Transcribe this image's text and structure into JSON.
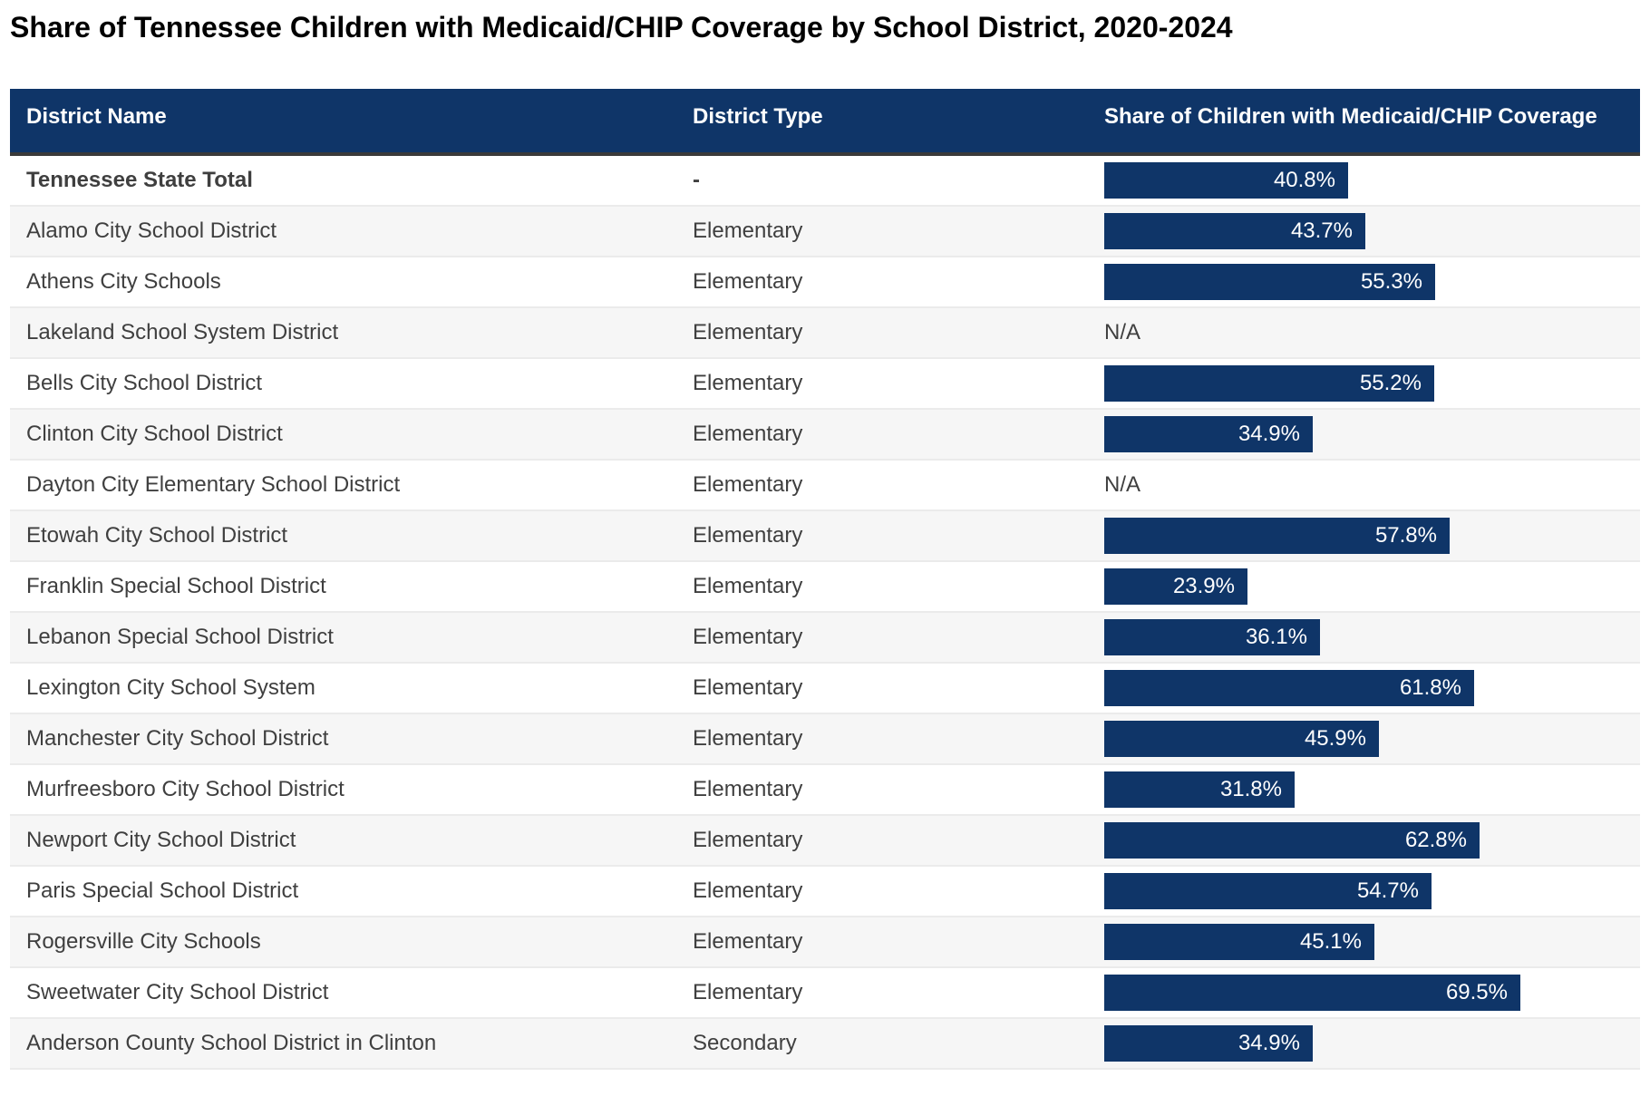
{
  "title": "Share of Tennessee Children with Medicaid/CHIP Coverage by School District, 2020-2024",
  "chart_data": {
    "type": "table",
    "title": "Share of Tennessee Children with Medicaid/CHIP Coverage by School District, 2020-2024",
    "columns": [
      "District Name",
      "District Type",
      "Share of Children with Medicaid/CHIP Coverage"
    ],
    "value_unit": "%",
    "na_text": "N/A",
    "max_value": 69.5,
    "legend_position": "none",
    "grid": "row-stripes",
    "colors": {
      "bar": "#0f3568",
      "header_bg": "#0f3568",
      "header_text": "#ffffff",
      "header_border": "#3a3a3a",
      "row_alt": "#f6f6f6",
      "row_border": "#ebebeb",
      "body_text": "#3f3f3f",
      "bar_label_text": "#ffffff"
    },
    "rows": [
      {
        "district_name": "Tennessee State Total",
        "district_type": "-",
        "share_pct": 40.8,
        "label": "40.8%",
        "emphasis": true
      },
      {
        "district_name": "Alamo City School District",
        "district_type": "Elementary",
        "share_pct": 43.7,
        "label": "43.7%",
        "emphasis": false
      },
      {
        "district_name": "Athens City Schools",
        "district_type": "Elementary",
        "share_pct": 55.3,
        "label": "55.3%",
        "emphasis": false
      },
      {
        "district_name": "Lakeland School System District",
        "district_type": "Elementary",
        "share_pct": null,
        "label": "N/A",
        "emphasis": false
      },
      {
        "district_name": "Bells City School District",
        "district_type": "Elementary",
        "share_pct": 55.2,
        "label": "55.2%",
        "emphasis": false
      },
      {
        "district_name": "Clinton City School District",
        "district_type": "Elementary",
        "share_pct": 34.9,
        "label": "34.9%",
        "emphasis": false
      },
      {
        "district_name": "Dayton City Elementary School District",
        "district_type": "Elementary",
        "share_pct": null,
        "label": "N/A",
        "emphasis": false
      },
      {
        "district_name": "Etowah City School District",
        "district_type": "Elementary",
        "share_pct": 57.8,
        "label": "57.8%",
        "emphasis": false
      },
      {
        "district_name": "Franklin Special School District",
        "district_type": "Elementary",
        "share_pct": 23.9,
        "label": "23.9%",
        "emphasis": false
      },
      {
        "district_name": "Lebanon Special School District",
        "district_type": "Elementary",
        "share_pct": 36.1,
        "label": "36.1%",
        "emphasis": false
      },
      {
        "district_name": "Lexington City School System",
        "district_type": "Elementary",
        "share_pct": 61.8,
        "label": "61.8%",
        "emphasis": false
      },
      {
        "district_name": "Manchester City School District",
        "district_type": "Elementary",
        "share_pct": 45.9,
        "label": "45.9%",
        "emphasis": false
      },
      {
        "district_name": "Murfreesboro City School District",
        "district_type": "Elementary",
        "share_pct": 31.8,
        "label": "31.8%",
        "emphasis": false
      },
      {
        "district_name": "Newport City School District",
        "district_type": "Elementary",
        "share_pct": 62.8,
        "label": "62.8%",
        "emphasis": false
      },
      {
        "district_name": "Paris Special School District",
        "district_type": "Elementary",
        "share_pct": 54.7,
        "label": "54.7%",
        "emphasis": false
      },
      {
        "district_name": "Rogersville City Schools",
        "district_type": "Elementary",
        "share_pct": 45.1,
        "label": "45.1%",
        "emphasis": false
      },
      {
        "district_name": "Sweetwater City School District",
        "district_type": "Elementary",
        "share_pct": 69.5,
        "label": "69.5%",
        "emphasis": false
      },
      {
        "district_name": "Anderson County School District in Clinton",
        "district_type": "Secondary",
        "share_pct": 34.9,
        "label": "34.9%",
        "emphasis": false
      }
    ]
  }
}
